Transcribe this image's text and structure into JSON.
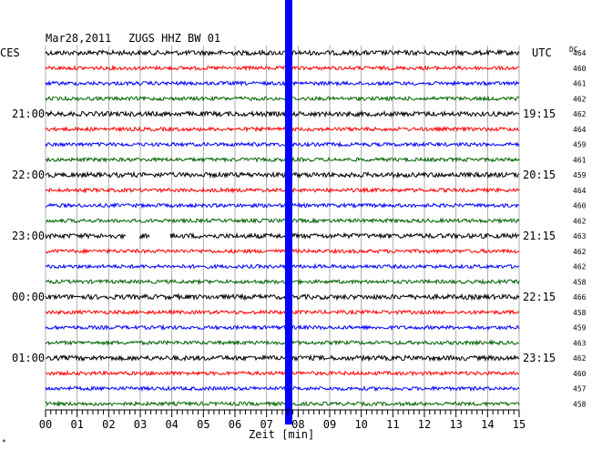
{
  "header": {
    "date": "Mar28,2011",
    "station": "ZUGS HHZ BW 01"
  },
  "chart_data": {
    "type": "line",
    "title": "Mar28,2011   ZUGS HHZ BW 01",
    "left_timezone": "CES",
    "right_timezone": "UTC",
    "dc_header": "DC",
    "xlabel": "Zeit [min]",
    "xlim": [
      0,
      15
    ],
    "x_ticks": [
      "00",
      "01",
      "02",
      "03",
      "04",
      "05",
      "06",
      "07",
      "08",
      "09",
      "10",
      "11",
      "12",
      "13",
      "14",
      "15"
    ],
    "left_hour_labels": [
      {
        "row": 4,
        "text": "21:00"
      },
      {
        "row": 8,
        "text": "22:00"
      },
      {
        "row": 12,
        "text": "23:00"
      },
      {
        "row": 16,
        "text": "00:00"
      },
      {
        "row": 20,
        "text": "01:00"
      }
    ],
    "right_hour_labels": [
      {
        "row": 4,
        "text": "19:15"
      },
      {
        "row": 8,
        "text": "20:15"
      },
      {
        "row": 12,
        "text": "21:15"
      },
      {
        "row": 16,
        "text": "22:15"
      },
      {
        "row": 20,
        "text": "23:15"
      }
    ],
    "trace_colors": [
      "#000000",
      "#ff0000",
      "#0000ff",
      "#006400"
    ],
    "dc_values": [
      "464",
      "460",
      "461",
      "462",
      "462",
      "464",
      "459",
      "461",
      "459",
      "464",
      "460",
      "462",
      "463",
      "462",
      "462",
      "458",
      "466",
      "458",
      "459",
      "463",
      "462",
      "460",
      "457",
      "458"
    ],
    "data_gaps": [
      {
        "row": 12,
        "from_min": 2.55,
        "to_min": 2.95
      },
      {
        "row": 12,
        "from_min": 3.3,
        "to_min": 3.95
      }
    ],
    "marker": {
      "color": "#0000ff",
      "x_min": 7.7
    },
    "grid": true
  },
  "footer": {
    "mark": "*"
  }
}
